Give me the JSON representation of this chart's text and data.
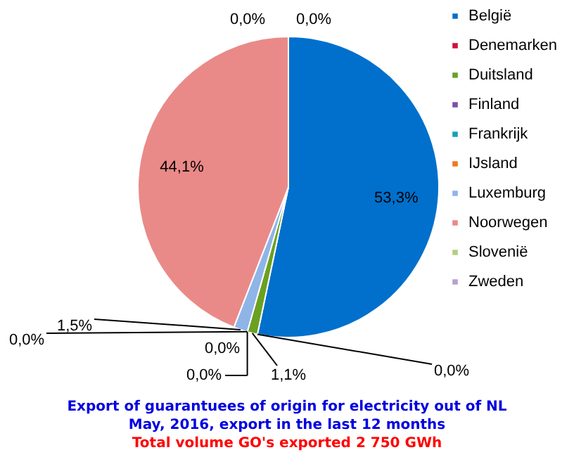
{
  "chart_data": {
    "type": "pie",
    "title": [
      "Export of guarantuees of origin for electricity out of NL",
      "May, 2016, export in the last 12 months"
    ],
    "subtitle": "Total volume GO's exported 2 750 GWh",
    "categories": [
      "België",
      "Denemarken",
      "Duitsland",
      "Finland",
      "Frankrijk",
      "IJsland",
      "Luxemburg",
      "Noorwegen",
      "Slovenië",
      "Zweden"
    ],
    "values": [
      53.3,
      0.0,
      1.1,
      0.0,
      0.0,
      0.0,
      1.5,
      44.1,
      0.0,
      0.0
    ],
    "value_labels": [
      "53,3%",
      "0,0%",
      "1,1%",
      "0,0%",
      "0,0%",
      "0,0%",
      "1,5%",
      "44,1%",
      "0,0%",
      "0,0%"
    ],
    "colors": [
      "#0070cc",
      "#d0103a",
      "#6aa121",
      "#7b4fb0",
      "#16a0b8",
      "#f07820",
      "#8fb4e8",
      "#ea8a88",
      "#b0d080",
      "#b8a0d0"
    ],
    "legend": "right"
  }
}
